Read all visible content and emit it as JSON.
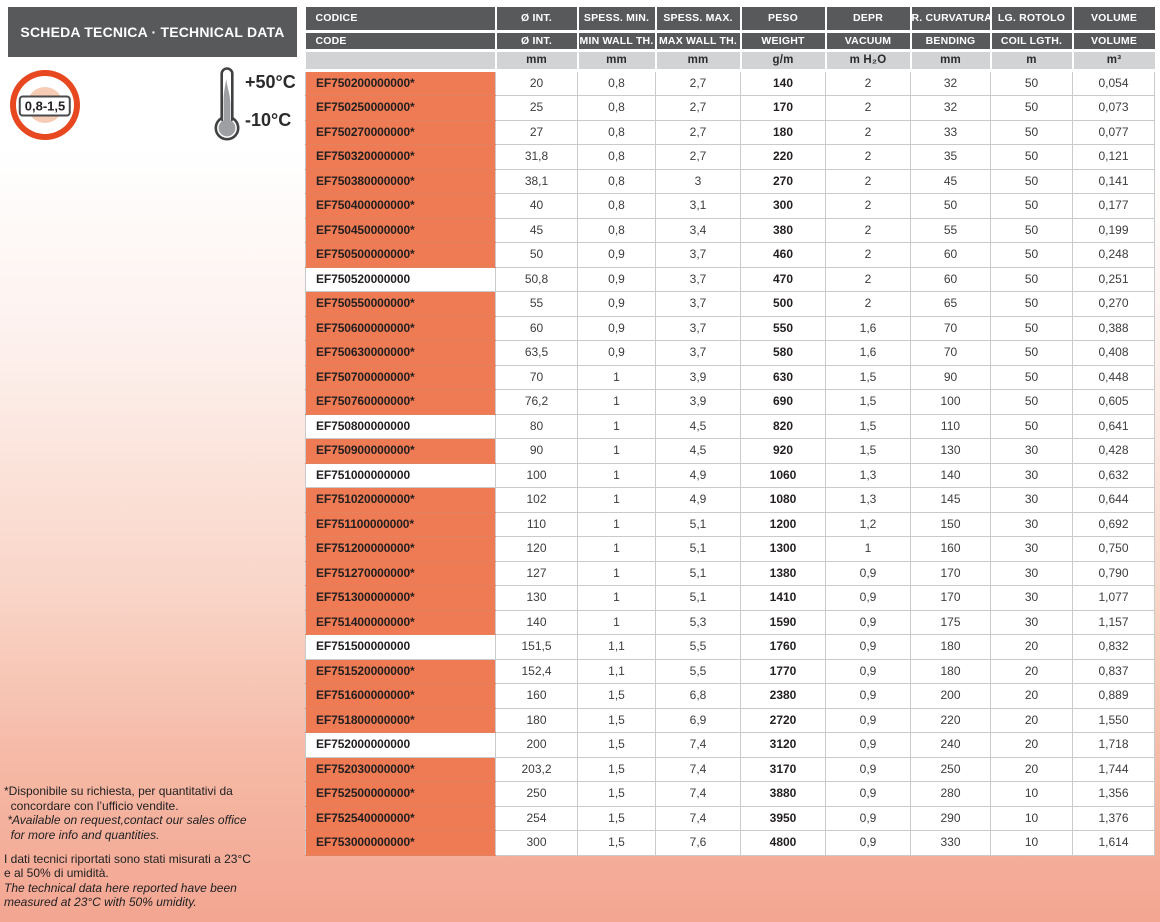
{
  "title_bar": {
    "label": "SCHEDA TECNICA · TECHNICAL DATA"
  },
  "badges": {
    "pressure_range_label": "0,8-1,5",
    "temp_max_label": "+50°C",
    "temp_min_label": "-10°C"
  },
  "colors": {
    "header_grey": "#58595b",
    "units_grey": "#d1d3d4",
    "accent_orange": "#ee7b53",
    "badge_red": "#e8481f",
    "page_salmon": "#f3a692"
  },
  "table": {
    "header": {
      "row_it": [
        "CODICE",
        "Ø INT.",
        "SPESS. MIN.",
        "SPESS. MAX.",
        "PESO",
        "DEPR",
        "R. CURVATURA",
        "LG. ROTOLO",
        "VOLUME"
      ],
      "row_en": [
        "CODE",
        "Ø INT.",
        "MIN WALL TH.",
        "MAX WALL TH.",
        "WEIGHT",
        "VACUUM",
        "BENDING",
        "COIL LGTH.",
        "VOLUME"
      ],
      "units": [
        "",
        "mm",
        "mm",
        "mm",
        "g/m",
        "m H₂O",
        "mm",
        "m",
        "m³"
      ]
    },
    "rows": [
      {
        "code": "EF750200000000*",
        "highlight": true,
        "values": [
          "20",
          "0,8",
          "2,7",
          "140",
          "2",
          "32",
          "50",
          "0,054"
        ]
      },
      {
        "code": "EF750250000000*",
        "highlight": true,
        "values": [
          "25",
          "0,8",
          "2,7",
          "170",
          "2",
          "32",
          "50",
          "0,073"
        ]
      },
      {
        "code": "EF750270000000*",
        "highlight": true,
        "values": [
          "27",
          "0,8",
          "2,7",
          "180",
          "2",
          "33",
          "50",
          "0,077"
        ]
      },
      {
        "code": "EF750320000000*",
        "highlight": true,
        "values": [
          "31,8",
          "0,8",
          "2,7",
          "220",
          "2",
          "35",
          "50",
          "0,121"
        ]
      },
      {
        "code": "EF750380000000*",
        "highlight": true,
        "values": [
          "38,1",
          "0,8",
          "3",
          "270",
          "2",
          "45",
          "50",
          "0,141"
        ]
      },
      {
        "code": "EF750400000000*",
        "highlight": true,
        "values": [
          "40",
          "0,8",
          "3,1",
          "300",
          "2",
          "50",
          "50",
          "0,177"
        ]
      },
      {
        "code": "EF750450000000*",
        "highlight": true,
        "values": [
          "45",
          "0,8",
          "3,4",
          "380",
          "2",
          "55",
          "50",
          "0,199"
        ]
      },
      {
        "code": "EF750500000000*",
        "highlight": true,
        "values": [
          "50",
          "0,9",
          "3,7",
          "460",
          "2",
          "60",
          "50",
          "0,248"
        ]
      },
      {
        "code": "EF750520000000",
        "highlight": false,
        "values": [
          "50,8",
          "0,9",
          "3,7",
          "470",
          "2",
          "60",
          "50",
          "0,251"
        ]
      },
      {
        "code": "EF750550000000*",
        "highlight": true,
        "values": [
          "55",
          "0,9",
          "3,7",
          "500",
          "2",
          "65",
          "50",
          "0,270"
        ]
      },
      {
        "code": "EF750600000000*",
        "highlight": true,
        "values": [
          "60",
          "0,9",
          "3,7",
          "550",
          "1,6",
          "70",
          "50",
          "0,388"
        ]
      },
      {
        "code": "EF750630000000*",
        "highlight": true,
        "values": [
          "63,5",
          "0,9",
          "3,7",
          "580",
          "1,6",
          "70",
          "50",
          "0,408"
        ]
      },
      {
        "code": "EF750700000000*",
        "highlight": true,
        "values": [
          "70",
          "1",
          "3,9",
          "630",
          "1,5",
          "90",
          "50",
          "0,448"
        ]
      },
      {
        "code": "EF750760000000*",
        "highlight": true,
        "values": [
          "76,2",
          "1",
          "3,9",
          "690",
          "1,5",
          "100",
          "50",
          "0,605"
        ]
      },
      {
        "code": "EF750800000000",
        "highlight": false,
        "values": [
          "80",
          "1",
          "4,5",
          "820",
          "1,5",
          "110",
          "50",
          "0,641"
        ]
      },
      {
        "code": "EF750900000000*",
        "highlight": true,
        "values": [
          "90",
          "1",
          "4,5",
          "920",
          "1,5",
          "130",
          "30",
          "0,428"
        ]
      },
      {
        "code": "EF751000000000",
        "highlight": false,
        "values": [
          "100",
          "1",
          "4,9",
          "1060",
          "1,3",
          "140",
          "30",
          "0,632"
        ]
      },
      {
        "code": "EF751020000000*",
        "highlight": true,
        "values": [
          "102",
          "1",
          "4,9",
          "1080",
          "1,3",
          "145",
          "30",
          "0,644"
        ]
      },
      {
        "code": "EF751100000000*",
        "highlight": true,
        "values": [
          "110",
          "1",
          "5,1",
          "1200",
          "1,2",
          "150",
          "30",
          "0,692"
        ]
      },
      {
        "code": "EF751200000000*",
        "highlight": true,
        "values": [
          "120",
          "1",
          "5,1",
          "1300",
          "1",
          "160",
          "30",
          "0,750"
        ]
      },
      {
        "code": "EF751270000000*",
        "highlight": true,
        "values": [
          "127",
          "1",
          "5,1",
          "1380",
          "0,9",
          "170",
          "30",
          "0,790"
        ]
      },
      {
        "code": "EF751300000000*",
        "highlight": true,
        "values": [
          "130",
          "1",
          "5,1",
          "1410",
          "0,9",
          "170",
          "30",
          "1,077"
        ]
      },
      {
        "code": "EF751400000000*",
        "highlight": true,
        "values": [
          "140",
          "1",
          "5,3",
          "1590",
          "0,9",
          "175",
          "30",
          "1,157"
        ]
      },
      {
        "code": "EF751500000000",
        "highlight": false,
        "values": [
          "151,5",
          "1,1",
          "5,5",
          "1760",
          "0,9",
          "180",
          "20",
          "0,832"
        ]
      },
      {
        "code": "EF751520000000*",
        "highlight": true,
        "values": [
          "152,4",
          "1,1",
          "5,5",
          "1770",
          "0,9",
          "180",
          "20",
          "0,837"
        ]
      },
      {
        "code": "EF751600000000*",
        "highlight": true,
        "values": [
          "160",
          "1,5",
          "6,8",
          "2380",
          "0,9",
          "200",
          "20",
          "0,889"
        ]
      },
      {
        "code": "EF751800000000*",
        "highlight": true,
        "values": [
          "180",
          "1,5",
          "6,9",
          "2720",
          "0,9",
          "220",
          "20",
          "1,550"
        ]
      },
      {
        "code": "EF752000000000",
        "highlight": false,
        "values": [
          "200",
          "1,5",
          "7,4",
          "3120",
          "0,9",
          "240",
          "20",
          "1,718"
        ]
      },
      {
        "code": "EF752030000000*",
        "highlight": true,
        "values": [
          "203,2",
          "1,5",
          "7,4",
          "3170",
          "0,9",
          "250",
          "20",
          "1,744"
        ]
      },
      {
        "code": "EF752500000000*",
        "highlight": true,
        "values": [
          "250",
          "1,5",
          "7,4",
          "3880",
          "0,9",
          "280",
          "10",
          "1,356"
        ]
      },
      {
        "code": "EF752540000000*",
        "highlight": true,
        "values": [
          "254",
          "1,5",
          "7,4",
          "3950",
          "0,9",
          "290",
          "10",
          "1,376"
        ]
      },
      {
        "code": "EF753000000000*",
        "highlight": true,
        "values": [
          "300",
          "1,5",
          "7,6",
          "4800",
          "0,9",
          "330",
          "10",
          "1,614"
        ]
      }
    ]
  },
  "footnotes": {
    "availability_it": "*Disponibile su richiesta, per quantitativi da\n  concordare con l’ufficio vendite.",
    "availability_en": " *Available on request,contact our sales office\n  for more info and quantities.",
    "measurement_it": "I dati tecnici riportati sono stati misurati a 23°C\ne al 50% di umidità.",
    "measurement_en": "The technical data here reported have been\nmeasured at 23°C with 50% umidity."
  }
}
